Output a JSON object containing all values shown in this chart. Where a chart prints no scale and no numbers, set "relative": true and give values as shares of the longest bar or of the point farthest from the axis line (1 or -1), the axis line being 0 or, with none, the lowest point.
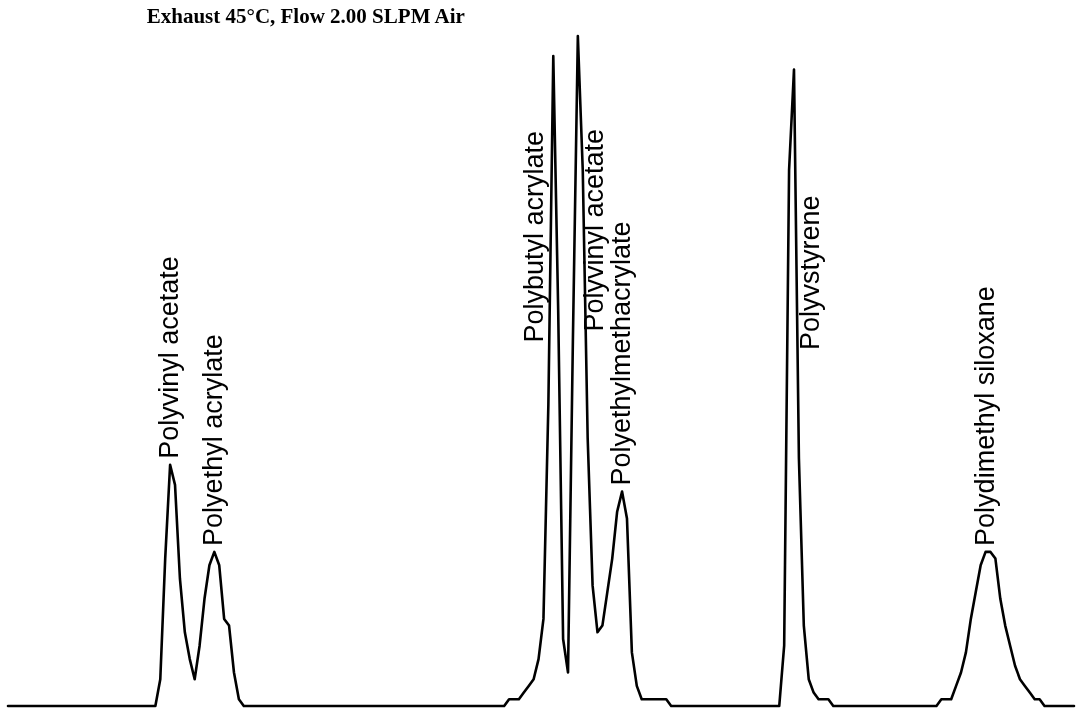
{
  "chart_data": {
    "type": "line",
    "title": "Exhaust 45°C, Flow 2.00 SLPM Air",
    "relative": true,
    "tick_labels": false,
    "categories": [
      null,
      null,
      null,
      null,
      null,
      null,
      null,
      null,
      null,
      null,
      null,
      null,
      null,
      null,
      null,
      null,
      null,
      null,
      null,
      null,
      null,
      null,
      null,
      null,
      null,
      null,
      null,
      null,
      null,
      null,
      null,
      null,
      null,
      null,
      null,
      null,
      null,
      null,
      null,
      null,
      null,
      null,
      null,
      null,
      null,
      null,
      null,
      null,
      null,
      null,
      null,
      null,
      null,
      null,
      null,
      null,
      null,
      null,
      null,
      null,
      null,
      null,
      null,
      null,
      null,
      null,
      null,
      null,
      null,
      null,
      null,
      null,
      null,
      null,
      null,
      null,
      null,
      null,
      null,
      null,
      null,
      null,
      null,
      null,
      null,
      null,
      null,
      null,
      null,
      null,
      null,
      null,
      null,
      null,
      null,
      null,
      null,
      null,
      null,
      null,
      null,
      null,
      null,
      null,
      null,
      null,
      null,
      null,
      null,
      null,
      null,
      null,
      null,
      null,
      null,
      null,
      null,
      null,
      null,
      null,
      null,
      null,
      null,
      null,
      null,
      null,
      null,
      null,
      null,
      null,
      null,
      null,
      null,
      null,
      null,
      null,
      null,
      null,
      null,
      null,
      null,
      null,
      null,
      null,
      null,
      null,
      null,
      null,
      null,
      null,
      null,
      null,
      null,
      null,
      null,
      null,
      null,
      null,
      null,
      null,
      null,
      null,
      null,
      null,
      null,
      null,
      null,
      null,
      null,
      null,
      null,
      null,
      null,
      null,
      null,
      null,
      null,
      null,
      null,
      null,
      null,
      null,
      null,
      null,
      null,
      null,
      null,
      null,
      null,
      null,
      null,
      null,
      null,
      null,
      null,
      null,
      null,
      null,
      null,
      null,
      null,
      null,
      null,
      null,
      null,
      null,
      null,
      null,
      null,
      null,
      null,
      null,
      null,
      null,
      null,
      null,
      null,
      null
    ],
    "series": [
      {
        "color": "#000000",
        "values": [
          0,
          0,
          0,
          0,
          0,
          0,
          0,
          0,
          0,
          0,
          0,
          0,
          0,
          0,
          0,
          0,
          0,
          0,
          0,
          0,
          0,
          0,
          0,
          0,
          0,
          0,
          0,
          0,
          0,
          0,
          0,
          0.04,
          0.22,
          0.36,
          0.33,
          0.19,
          0.11,
          0.07,
          0.04,
          0.09,
          0.16,
          0.21,
          0.23,
          0.21,
          0.13,
          0.12,
          0.05,
          0.01,
          0,
          0,
          0,
          0,
          0,
          0,
          0,
          0,
          0,
          0,
          0,
          0,
          0,
          0,
          0,
          0,
          0,
          0,
          0,
          0,
          0,
          0,
          0,
          0,
          0,
          0,
          0,
          0,
          0,
          0,
          0,
          0,
          0,
          0,
          0,
          0,
          0,
          0,
          0,
          0,
          0,
          0,
          0,
          0,
          0,
          0,
          0,
          0,
          0,
          0,
          0,
          0,
          0,
          0,
          0.01,
          0.01,
          0.01,
          0.02,
          0.03,
          0.04,
          0.07,
          0.13,
          0.45,
          0.97,
          0.59,
          0.1,
          0.05,
          0.55,
          1,
          0.8,
          0.4,
          0.18,
          0.11,
          0.12,
          0.17,
          0.22,
          0.29,
          0.32,
          0.28,
          0.08,
          0.03,
          0.01,
          0.01,
          0.01,
          0.01,
          0.01,
          0.01,
          0,
          0,
          0,
          0,
          0,
          0,
          0,
          0,
          0,
          0,
          0,
          0,
          0,
          0,
          0,
          0,
          0,
          0,
          0,
          0,
          0,
          0,
          0,
          0.09,
          0.8,
          0.95,
          0.37,
          0.12,
          0.04,
          0.02,
          0.01,
          0.01,
          0.01,
          0,
          0,
          0,
          0,
          0,
          0,
          0,
          0,
          0,
          0,
          0,
          0,
          0,
          0,
          0,
          0,
          0,
          0,
          0,
          0,
          0,
          0,
          0.01,
          0.01,
          0.01,
          0.03,
          0.05,
          0.08,
          0.13,
          0.17,
          0.21,
          0.23,
          0.23,
          0.22,
          0.16,
          0.12,
          0.09,
          0.06,
          0.04,
          0.03,
          0.02,
          0.01,
          0.01,
          0,
          0,
          0,
          0,
          0,
          0,
          0
        ]
      }
    ],
    "annotations": [
      "Polyvinyl acetate",
      "Polyethyl acrylate",
      "Polybutyl acrylate",
      "Polyvinyl acetate",
      "Polyethylmethacrylate",
      "Polyvstyrene",
      "Polydimethyl siloxane"
    ]
  }
}
